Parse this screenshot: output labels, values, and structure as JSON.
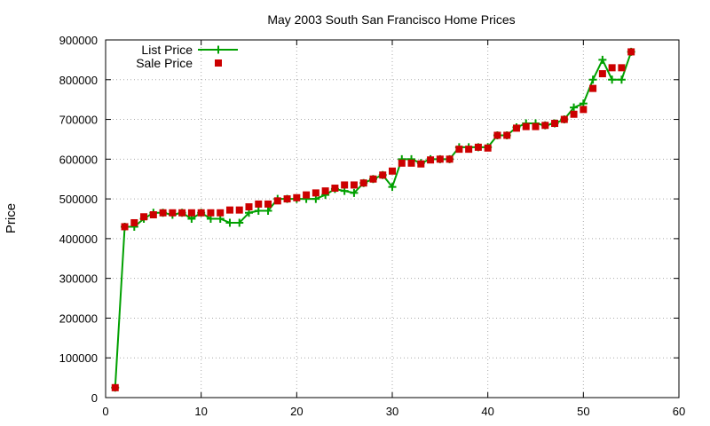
{
  "chart_data": {
    "type": "line",
    "title": "May 2003 South San Francisco Home Prices",
    "xlabel": "",
    "ylabel": "Price",
    "xlim": [
      0,
      60
    ],
    "ylim": [
      0,
      900000
    ],
    "xticks": [
      0,
      10,
      20,
      30,
      40,
      50,
      60
    ],
    "yticks": [
      0,
      100000,
      200000,
      300000,
      400000,
      500000,
      600000,
      700000,
      800000,
      900000
    ],
    "grid": true,
    "legend_position": "top-left",
    "series": [
      {
        "name": "List Price",
        "style": "line-with-plus-markers",
        "color": "#00a000",
        "x": [
          1,
          2,
          3,
          4,
          5,
          6,
          7,
          8,
          9,
          10,
          11,
          12,
          13,
          14,
          15,
          16,
          17,
          18,
          19,
          20,
          21,
          22,
          23,
          24,
          25,
          26,
          27,
          28,
          29,
          30,
          31,
          32,
          33,
          34,
          35,
          36,
          37,
          38,
          39,
          40,
          41,
          42,
          43,
          44,
          45,
          46,
          47,
          48,
          49,
          50,
          51,
          52,
          53,
          54,
          55
        ],
        "y": [
          25000,
          430000,
          430000,
          450000,
          465000,
          465000,
          460000,
          465000,
          450000,
          465000,
          450000,
          450000,
          440000,
          440000,
          465000,
          470000,
          470000,
          500000,
          500000,
          500000,
          500000,
          500000,
          510000,
          525000,
          520000,
          515000,
          540000,
          550000,
          560000,
          530000,
          600000,
          600000,
          590000,
          600000,
          600000,
          600000,
          630000,
          630000,
          630000,
          630000,
          660000,
          660000,
          680000,
          690000,
          690000,
          685000,
          690000,
          700000,
          730000,
          740000,
          800000,
          850000,
          800000,
          800000,
          870000
        ]
      },
      {
        "name": "Sale Price",
        "style": "square-markers",
        "color": "#cc0000",
        "x": [
          1,
          2,
          3,
          4,
          5,
          6,
          7,
          8,
          9,
          10,
          11,
          12,
          13,
          14,
          15,
          16,
          17,
          18,
          19,
          20,
          21,
          22,
          23,
          24,
          25,
          26,
          27,
          28,
          29,
          30,
          31,
          32,
          33,
          34,
          35,
          36,
          37,
          38,
          39,
          40,
          41,
          42,
          43,
          44,
          45,
          46,
          47,
          48,
          49,
          50,
          51,
          52,
          53,
          54,
          55
        ],
        "y": [
          25000,
          430000,
          440000,
          455000,
          460000,
          465000,
          465000,
          465000,
          465000,
          465000,
          465000,
          465000,
          472000,
          472000,
          480000,
          487000,
          487000,
          495000,
          500000,
          503000,
          510000,
          515000,
          520000,
          527000,
          535000,
          535000,
          540000,
          550000,
          560000,
          570000,
          590000,
          590000,
          588000,
          598000,
          600000,
          600000,
          625000,
          625000,
          630000,
          628000,
          660000,
          660000,
          678000,
          682000,
          682000,
          685000,
          690000,
          700000,
          713000,
          725000,
          778000,
          815000,
          830000,
          830000,
          870000
        ]
      }
    ]
  }
}
